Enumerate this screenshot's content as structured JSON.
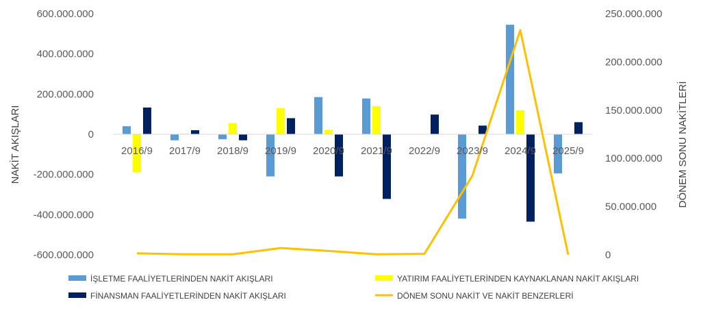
{
  "chart_data": {
    "type": "bar",
    "categories": [
      "2016/9",
      "2017/9",
      "2018/9",
      "2019/9",
      "2020/9",
      "2021/9",
      "2022/9",
      "2023/9",
      "2024/9",
      "2025/9"
    ],
    "ylabel": "NAKİT AKIŞLARI",
    "y2label": "DÖNEM SONU NAKİTLERİ",
    "ylim": [
      -600000000,
      600000000
    ],
    "y2lim": [
      0,
      250000000
    ],
    "yticks": [
      "600.000.000",
      "400.000.000",
      "200.000.000",
      "0",
      "-200.000.000",
      "-400.000.000",
      "-600.000.000"
    ],
    "y2ticks": [
      "250.000.000",
      "200.000.000",
      "150.000.000",
      "100.000.000",
      "50.000.000",
      "0"
    ],
    "grid": false,
    "legend_position": "bottom",
    "series": [
      {
        "name": "İŞLETME FAALİYETLERİNDEN NAKİT AKIŞLARI",
        "type": "bar",
        "axis": "left",
        "color": "#5B9BD5",
        "values": [
          40000000,
          -30000000,
          -25000000,
          -210000000,
          185000000,
          178000000,
          0,
          -420000000,
          545000000,
          -195000000
        ]
      },
      {
        "name": "YATIRIM FAALİYETLERİNDEN KAYNAKLANAN NAKİT AKIŞLARI",
        "type": "bar",
        "axis": "left",
        "color": "#FFFF00",
        "values": [
          -190000000,
          3000000,
          55000000,
          130000000,
          22000000,
          140000000,
          0,
          0,
          120000000,
          0
        ]
      },
      {
        "name": "FİNANSMAN FAALİYETLERİNDEN NAKİT AKIŞLARI",
        "type": "bar",
        "axis": "left",
        "color": "#002060",
        "values": [
          133000000,
          20000000,
          -30000000,
          80000000,
          -210000000,
          -322000000,
          98000000,
          43000000,
          -435000000,
          60000000
        ]
      },
      {
        "name": "DÖNEM SONU NAKİT VE NAKİT BENZERLERİ",
        "type": "line",
        "axis": "right",
        "color": "#FFC000",
        "values": [
          1500000,
          500000,
          500000,
          7000000,
          4000000,
          500000,
          1000000,
          82000000,
          233000000,
          0
        ]
      }
    ]
  }
}
